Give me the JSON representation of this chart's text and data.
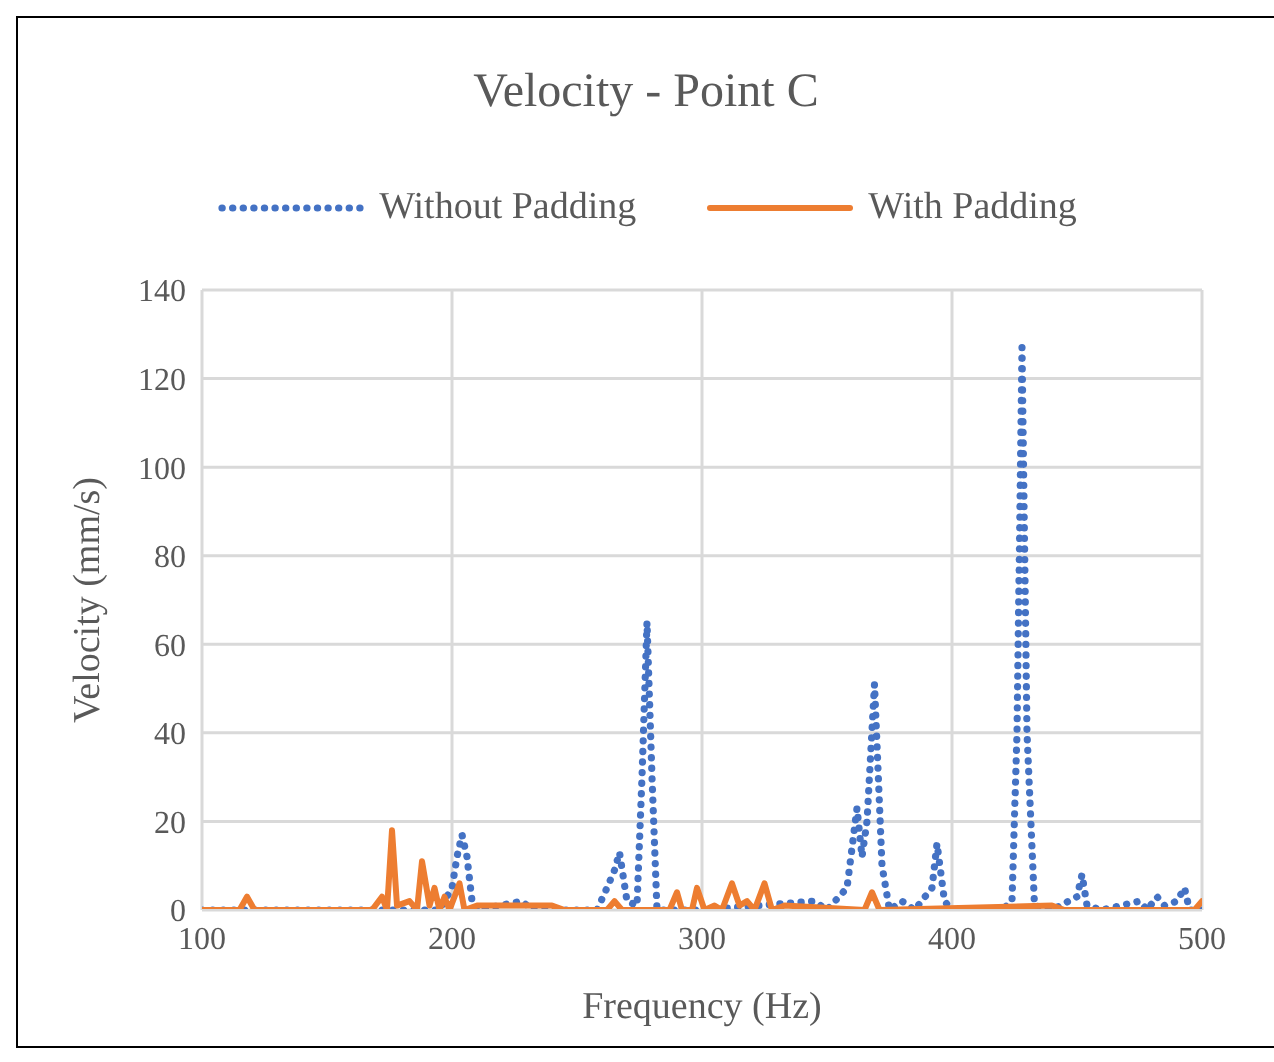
{
  "chart_data": {
    "type": "line",
    "title": "Velocity - Point C",
    "xlabel": "Frequency (Hz)",
    "ylabel": "Velocity (mm/s)",
    "xlim": [
      100,
      500
    ],
    "xticks": [
      100,
      200,
      300,
      400,
      500
    ],
    "ylim": [
      0,
      140
    ],
    "yticks": [
      0,
      20,
      40,
      60,
      80,
      100,
      120,
      140
    ],
    "grid": true,
    "legend": "top",
    "marker": "none",
    "series": [
      {
        "name": "Without Padding",
        "color": "#4472c4",
        "line_style": "dotted",
        "x": [
          100,
          150,
          195,
          200,
          202,
          204,
          206,
          208,
          210,
          228,
          232,
          258,
          262,
          265,
          267,
          270,
          274,
          276,
          278,
          280,
          282,
          300,
          345,
          350,
          358,
          362,
          364,
          366,
          369,
          372,
          375,
          380,
          385,
          392,
          394,
          397,
          400,
          420,
          424,
          426,
          428,
          430,
          433,
          440,
          450,
          452,
          454,
          460,
          475,
          478,
          482,
          485,
          490,
          493,
          495,
          500
        ],
        "values": [
          0,
          0,
          0,
          5,
          12,
          17,
          12,
          2,
          0,
          2,
          0,
          0,
          5,
          9,
          13,
          2,
          1,
          30,
          65,
          30,
          0,
          0,
          2,
          0,
          5,
          23,
          12,
          20,
          51,
          10,
          0,
          2,
          0,
          5,
          15,
          2,
          0,
          0,
          2,
          40,
          127,
          40,
          1,
          0,
          3,
          8,
          1,
          0,
          2,
          0,
          3,
          1,
          2,
          5,
          0,
          0
        ]
      },
      {
        "name": "With Padding",
        "color": "#ed7d31",
        "line_style": "solid",
        "x": [
          100,
          115,
          118,
          121,
          168,
          172,
          174,
          176,
          178,
          183,
          186,
          188,
          191,
          193,
          195,
          197,
          199,
          203,
          205,
          210,
          240,
          245,
          262,
          265,
          268,
          287,
          290,
          292,
          296,
          298,
          301,
          305,
          308,
          312,
          315,
          318,
          321,
          325,
          328,
          333,
          365,
          368,
          371,
          440,
          445,
          497,
          500
        ],
        "values": [
          0,
          0,
          3,
          0,
          0,
          3,
          0,
          18,
          1,
          2,
          0,
          11,
          1,
          5,
          0,
          3,
          0,
          6,
          0,
          1,
          1,
          0,
          0,
          2,
          0,
          0,
          4,
          0,
          0,
          5,
          0,
          1,
          0,
          6,
          1,
          2,
          0,
          6,
          0,
          1,
          0,
          4,
          0,
          1,
          0,
          0,
          2
        ]
      }
    ]
  }
}
